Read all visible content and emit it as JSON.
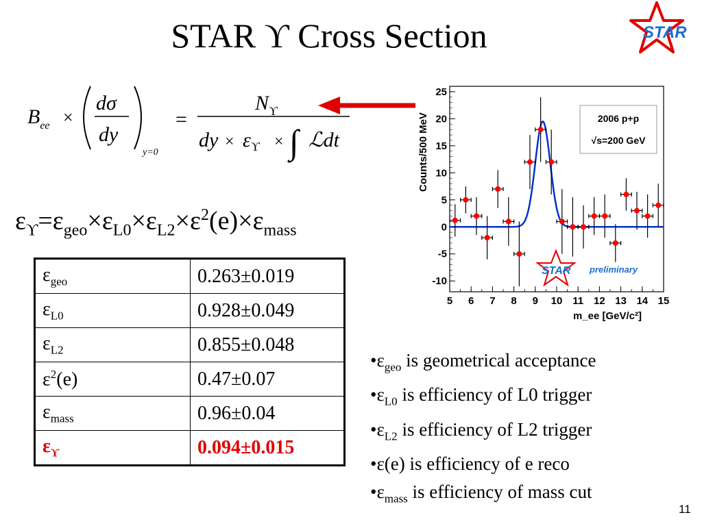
{
  "slide": {
    "title": "STAR ϒ Cross Section",
    "logo_text": "STAR",
    "page_number": "11"
  },
  "formula": {
    "lhs_B": "B",
    "lhs_B_sub": "ee",
    "times": "×",
    "d_sigma": "dσ",
    "dy": "dy",
    "eval_at": "y=0",
    "equals": "=",
    "numerator": "N",
    "numerator_sub": "ϒ",
    "denominator_dy": "dy",
    "denominator_eps": "ε",
    "denominator_eps_sub": "ϒ",
    "integral": "∫",
    "lumi": "ℒdt"
  },
  "efficiency_equation": {
    "eps": "ε",
    "ups": "ϒ",
    "eq": "=",
    "x": "×",
    "geo": "geo",
    "L0": "L0",
    "L2": "L2",
    "sq": "2",
    "e": "(e)",
    "mass": "mass"
  },
  "table": {
    "rows": [
      {
        "sym": "ε",
        "sub": "geo",
        "sup": "",
        "suffix": "",
        "value": "0.263±0.019"
      },
      {
        "sym": "ε",
        "sub": "L0",
        "sup": "",
        "suffix": "",
        "value": "0.928±0.049"
      },
      {
        "sym": "ε",
        "sub": "L2",
        "sup": "",
        "suffix": "",
        "value": "0.855±0.048"
      },
      {
        "sym": "ε",
        "sub": "",
        "sup": "2",
        "suffix": "(e)",
        "value": "0.47±0.07"
      },
      {
        "sym": "ε",
        "sub": "mass",
        "sup": "",
        "suffix": "",
        "value": "0.96±0.04"
      },
      {
        "sym": "ε",
        "sub": "ϒ",
        "sup": "",
        "suffix": "",
        "value": "0.094±0.015"
      }
    ]
  },
  "bullets": [
    {
      "marker": "•",
      "sym": "ε",
      "sub": "geo",
      "text": " is geometrical acceptance"
    },
    {
      "marker": "•",
      "sym": "ε",
      "sub": "L0",
      "text": " is efficiency of L0 trigger"
    },
    {
      "marker": "•",
      "sym": "ε",
      "sub": "L2",
      "text": " is efficiency of L2 trigger"
    },
    {
      "marker": "•",
      "sym": "ε",
      "sub": "",
      "text": "(e) is efficiency of e reco"
    },
    {
      "marker": "•",
      "sym": "ε",
      "sub": "mass",
      "text": " is efficiency of mass cut"
    }
  ],
  "colors": {
    "arrow": "#e00000",
    "logo_star": "#e00000",
    "logo_text": "#1a6fd1",
    "data_points": "#ff0000",
    "fit_curve": "#0033cc",
    "highlight_row": "#e00000"
  },
  "chart_data": {
    "type": "scatter",
    "xlabel": "m_ee [GeV/c²]",
    "ylabel": "Counts/500 MeV",
    "xlim": [
      5,
      15
    ],
    "ylim": [
      -12,
      26
    ],
    "xticks": [
      5,
      6,
      7,
      8,
      9,
      10,
      11,
      12,
      13,
      14,
      15
    ],
    "yticks": [
      -10,
      -5,
      0,
      5,
      10,
      15,
      20,
      25
    ],
    "legend_box": [
      "2006 p+p",
      "√s=200 GeV"
    ],
    "watermark": [
      "STAR",
      "preliminary"
    ],
    "series": [
      {
        "points": [
          {
            "x": 5.25,
            "y": 1.2,
            "err": 3.0
          },
          {
            "x": 5.75,
            "y": 5.0,
            "err": 2.5
          },
          {
            "x": 6.25,
            "y": 2.0,
            "err": 3.5
          },
          {
            "x": 6.75,
            "y": -2.0,
            "err": 4.0
          },
          {
            "x": 7.25,
            "y": 7.0,
            "err": 3.5
          },
          {
            "x": 7.75,
            "y": 1.0,
            "err": 4.5
          },
          {
            "x": 8.25,
            "y": -5.0,
            "err": 6.0
          },
          {
            "x": 8.75,
            "y": 12.0,
            "err": 5.0
          },
          {
            "x": 9.25,
            "y": 18.0,
            "err": 6.0
          },
          {
            "x": 9.75,
            "y": 12.0,
            "err": 6.0
          },
          {
            "x": 10.25,
            "y": 1.0,
            "err": 6.0
          },
          {
            "x": 10.75,
            "y": 0.0,
            "err": 5.5
          },
          {
            "x": 11.25,
            "y": 0.0,
            "err": 4.0
          },
          {
            "x": 11.75,
            "y": 2.0,
            "err": 3.5
          },
          {
            "x": 12.25,
            "y": 2.0,
            "err": 4.0
          },
          {
            "x": 12.75,
            "y": -3.0,
            "err": 3.5
          },
          {
            "x": 13.25,
            "y": 6.0,
            "err": 3.0
          },
          {
            "x": 13.75,
            "y": 3.0,
            "err": 3.5
          },
          {
            "x": 14.25,
            "y": 2.0,
            "err": 4.0
          },
          {
            "x": 14.75,
            "y": 4.0,
            "err": 4.0
          }
        ]
      }
    ],
    "fit": {
      "type": "gaussian",
      "mean": 9.35,
      "sigma": 0.35,
      "amplitude": 19.5,
      "baseline": 0.0
    }
  }
}
